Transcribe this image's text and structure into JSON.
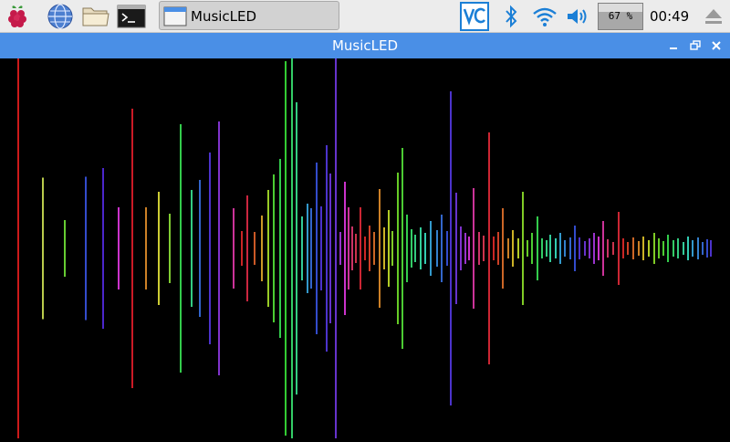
{
  "taskbar": {
    "launchers": [
      {
        "name": "raspberry-menu"
      },
      {
        "name": "web-browser"
      },
      {
        "name": "file-manager"
      },
      {
        "name": "terminal"
      }
    ],
    "tasks": [
      {
        "label": "MusicLED"
      }
    ],
    "tray": {
      "cpu_percent_label": "67 %",
      "cpu_level": 0.67,
      "clock": "00:49"
    }
  },
  "window": {
    "title": "MusicLED"
  },
  "visualizer": {
    "min_x": 20,
    "bar_spacing": 3.27,
    "center_y": 208,
    "bars": [
      [
        20,
        416,
        "#ff2020"
      ],
      [
        47,
        155,
        "#e8ff60"
      ],
      [
        71,
        62,
        "#80ff40"
      ],
      [
        94,
        157,
        "#4060ff"
      ],
      [
        113,
        176,
        "#6030ff"
      ],
      [
        130,
        90,
        "#ff40ff"
      ],
      [
        145,
        306,
        "#ff2030"
      ],
      [
        160,
        90,
        "#ffa030"
      ],
      [
        174,
        124,
        "#ffff40"
      ],
      [
        186,
        76,
        "#a0ff40"
      ],
      [
        198,
        272,
        "#40ff60"
      ],
      [
        210,
        128,
        "#40ffa0"
      ],
      [
        219,
        150,
        "#4080ff"
      ],
      [
        230,
        210,
        "#6040ff"
      ],
      [
        240,
        278,
        "#a040ff"
      ],
      [
        256,
        88,
        "#ff40c0"
      ],
      [
        265,
        38,
        "#ff3030"
      ],
      [
        271,
        116,
        "#ff3050"
      ],
      [
        279,
        36,
        "#ff7030"
      ],
      [
        287,
        72,
        "#ffc030"
      ],
      [
        294,
        128,
        "#c0ff30"
      ],
      [
        300,
        162,
        "#60ff40"
      ],
      [
        307,
        196,
        "#40ff60"
      ],
      [
        313,
        410,
        "#40ff40"
      ],
      [
        320,
        416,
        "#40ff80"
      ],
      [
        325,
        320,
        "#40ffa0"
      ],
      [
        331,
        70,
        "#40ffc0"
      ],
      [
        337,
        98,
        "#40c0ff"
      ],
      [
        341,
        88,
        "#4080ff"
      ],
      [
        347,
        188,
        "#4060ff"
      ],
      [
        352,
        92,
        "#6040ff"
      ],
      [
        358,
        226,
        "#6040ff"
      ],
      [
        362,
        164,
        "#8040ff"
      ],
      [
        368,
        416,
        "#8040ff"
      ],
      [
        373,
        36,
        "#c040ff"
      ],
      [
        378,
        146,
        "#ff40ff"
      ],
      [
        382,
        90,
        "#ff40c0"
      ],
      [
        386,
        48,
        "#ff4080"
      ],
      [
        390,
        32,
        "#ff4060"
      ],
      [
        395,
        90,
        "#ff3040"
      ],
      [
        400,
        26,
        "#ff3030"
      ],
      [
        405,
        50,
        "#ff5030"
      ],
      [
        410,
        36,
        "#ff8030"
      ],
      [
        416,
        130,
        "#ffa030"
      ],
      [
        421,
        46,
        "#ffe030"
      ],
      [
        426,
        84,
        "#e0ff30"
      ],
      [
        430,
        38,
        "#a0ff30"
      ],
      [
        436,
        166,
        "#80ff30"
      ],
      [
        441,
        220,
        "#60ff40"
      ],
      [
        446,
        74,
        "#40ff60"
      ],
      [
        451,
        42,
        "#40ff80"
      ],
      [
        455,
        30,
        "#40ffa0"
      ],
      [
        461,
        46,
        "#40ffc0"
      ],
      [
        466,
        34,
        "#40ffe0"
      ],
      [
        472,
        60,
        "#40c0ff"
      ],
      [
        479,
        40,
        "#40a0ff"
      ],
      [
        484,
        74,
        "#4080ff"
      ],
      [
        490,
        38,
        "#4060ff"
      ],
      [
        494,
        344,
        "#6040ff"
      ],
      [
        500,
        122,
        "#8040ff"
      ],
      [
        505,
        48,
        "#a040ff"
      ],
      [
        510,
        34,
        "#c040ff"
      ],
      [
        514,
        26,
        "#ff40ff"
      ],
      [
        519,
        132,
        "#ff40c0"
      ],
      [
        525,
        36,
        "#ff4080"
      ],
      [
        530,
        28,
        "#ff4060"
      ],
      [
        536,
        254,
        "#ff3040"
      ],
      [
        541,
        26,
        "#ff3030"
      ],
      [
        546,
        36,
        "#ff5030"
      ],
      [
        551,
        88,
        "#ff8030"
      ],
      [
        557,
        22,
        "#ffa030"
      ],
      [
        562,
        40,
        "#ffe030"
      ],
      [
        568,
        22,
        "#e0ff30"
      ],
      [
        573,
        124,
        "#a0ff30"
      ],
      [
        578,
        18,
        "#80ff30"
      ],
      [
        583,
        34,
        "#60ff40"
      ],
      [
        589,
        70,
        "#40ff60"
      ],
      [
        594,
        22,
        "#40ff80"
      ],
      [
        599,
        18,
        "#40ffa0"
      ],
      [
        603,
        30,
        "#40ffc0"
      ],
      [
        609,
        22,
        "#40ffe0"
      ],
      [
        614,
        34,
        "#40c0ff"
      ],
      [
        619,
        18,
        "#40a0ff"
      ],
      [
        625,
        24,
        "#4080ff"
      ],
      [
        630,
        50,
        "#4060ff"
      ],
      [
        635,
        24,
        "#6040ff"
      ],
      [
        641,
        16,
        "#8040ff"
      ],
      [
        646,
        22,
        "#a040ff"
      ],
      [
        651,
        34,
        "#c040ff"
      ],
      [
        656,
        26,
        "#ff40ff"
      ],
      [
        661,
        60,
        "#ff40c0"
      ],
      [
        666,
        20,
        "#ff4080"
      ],
      [
        672,
        14,
        "#ff4060"
      ],
      [
        678,
        80,
        "#ff3040"
      ],
      [
        683,
        22,
        "#ff3030"
      ],
      [
        688,
        14,
        "#ff5030"
      ],
      [
        694,
        24,
        "#ff8030"
      ],
      [
        700,
        16,
        "#ffa030"
      ],
      [
        705,
        26,
        "#ffe030"
      ],
      [
        711,
        18,
        "#e0ff30"
      ],
      [
        717,
        34,
        "#a0ff30"
      ],
      [
        722,
        22,
        "#80ff30"
      ],
      [
        727,
        16,
        "#60ff40"
      ],
      [
        732,
        30,
        "#40ff60"
      ],
      [
        738,
        18,
        "#40ff80"
      ],
      [
        743,
        22,
        "#40ffa0"
      ],
      [
        749,
        14,
        "#40ffc0"
      ],
      [
        754,
        26,
        "#40ffe0"
      ],
      [
        759,
        18,
        "#40c0ff"
      ],
      [
        765,
        24,
        "#40a0ff"
      ],
      [
        770,
        14,
        "#4080ff"
      ],
      [
        775,
        20,
        "#4060ff"
      ],
      [
        779,
        18,
        "#6040ff"
      ]
    ]
  }
}
